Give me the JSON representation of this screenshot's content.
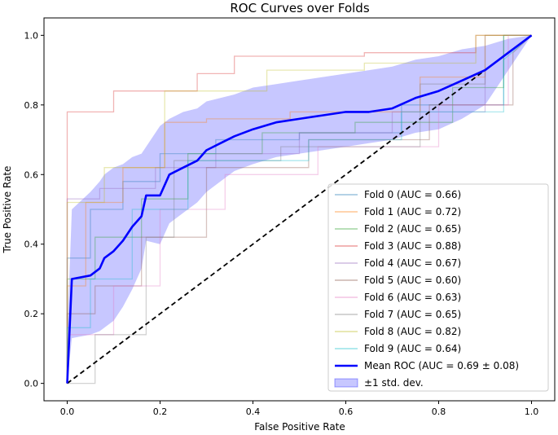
{
  "chart_data": {
    "type": "line",
    "title": "ROC Curves over Folds",
    "xlabel": "False Positive Rate",
    "ylabel": "True Positive Rate",
    "xlim": [
      -0.05,
      1.05
    ],
    "ylim": [
      -0.05,
      1.05
    ],
    "xticks": [
      0.0,
      0.2,
      0.4,
      0.6,
      0.8,
      1.0
    ],
    "yticks": [
      0.0,
      0.2,
      0.4,
      0.6,
      0.8,
      1.0
    ],
    "xtick_labels": [
      "0.0",
      "0.2",
      "0.4",
      "0.6",
      "0.8",
      "1.0"
    ],
    "ytick_labels": [
      "0.0",
      "0.2",
      "0.4",
      "0.6",
      "0.8",
      "1.0"
    ],
    "legend_position": "lower-right",
    "series": [
      {
        "name": "Fold 0 (AUC = 0.66)",
        "color": "#1f77b4",
        "x": [
          0,
          0,
          0.05,
          0.05,
          0.12,
          0.12,
          0.2,
          0.2,
          0.32,
          0.32,
          0.5,
          0.5,
          0.72,
          0.72,
          0.94,
          0.94,
          1.0
        ],
        "y": [
          0,
          0.36,
          0.36,
          0.5,
          0.5,
          0.58,
          0.58,
          0.66,
          0.66,
          0.7,
          0.7,
          0.72,
          0.72,
          0.8,
          0.8,
          1.0,
          1.0
        ]
      },
      {
        "name": "Fold 1 (AUC = 0.72)",
        "color": "#ff7f0e",
        "x": [
          0,
          0,
          0.04,
          0.04,
          0.12,
          0.12,
          0.21,
          0.21,
          0.3,
          0.3,
          0.48,
          0.48,
          0.76,
          0.76,
          0.9,
          0.9,
          1.0
        ],
        "y": [
          0,
          0.28,
          0.28,
          0.52,
          0.52,
          0.62,
          0.62,
          0.75,
          0.75,
          0.76,
          0.76,
          0.78,
          0.78,
          0.88,
          0.88,
          1.0,
          1.0
        ]
      },
      {
        "name": "Fold 2 (AUC = 0.65)",
        "color": "#2ca02c",
        "x": [
          0,
          0,
          0.06,
          0.06,
          0.16,
          0.16,
          0.26,
          0.26,
          0.42,
          0.42,
          0.62,
          0.62,
          0.83,
          0.83,
          0.94,
          0.94,
          1.0
        ],
        "y": [
          0,
          0.3,
          0.3,
          0.42,
          0.42,
          0.53,
          0.53,
          0.66,
          0.66,
          0.72,
          0.72,
          0.75,
          0.75,
          0.85,
          0.85,
          1.0,
          1.0
        ]
      },
      {
        "name": "Fold 3 (AUC = 0.88)",
        "color": "#d62728",
        "x": [
          0,
          0,
          0.1,
          0.1,
          0.28,
          0.28,
          0.36,
          0.36,
          0.64,
          0.64,
          0.88,
          0.88,
          1.0
        ],
        "y": [
          0,
          0.78,
          0.78,
          0.84,
          0.84,
          0.89,
          0.89,
          0.94,
          0.94,
          0.95,
          0.95,
          1.0,
          1.0
        ]
      },
      {
        "name": "Fold 4 (AUC = 0.67)",
        "color": "#9467bd",
        "x": [
          0,
          0,
          0.07,
          0.07,
          0.19,
          0.19,
          0.32,
          0.32,
          0.5,
          0.5,
          0.7,
          0.7,
          0.9,
          0.9,
          1.0
        ],
        "y": [
          0,
          0.53,
          0.53,
          0.56,
          0.56,
          0.62,
          0.62,
          0.66,
          0.66,
          0.72,
          0.72,
          0.78,
          0.78,
          0.9,
          1.0
        ]
      },
      {
        "name": "Fold 5 (AUC = 0.60)",
        "color": "#8c564b",
        "x": [
          0,
          0,
          0.06,
          0.06,
          0.16,
          0.16,
          0.3,
          0.3,
          0.52,
          0.52,
          0.78,
          0.78,
          0.96,
          0.96,
          1.0
        ],
        "y": [
          0,
          0.2,
          0.2,
          0.28,
          0.28,
          0.42,
          0.42,
          0.62,
          0.62,
          0.7,
          0.7,
          0.8,
          0.8,
          0.95,
          1.0
        ]
      },
      {
        "name": "Fold 6 (AUC = 0.63)",
        "color": "#e377c2",
        "x": [
          0,
          0,
          0.1,
          0.1,
          0.2,
          0.2,
          0.34,
          0.34,
          0.54,
          0.54,
          0.8,
          0.8,
          0.95,
          0.95,
          1.0
        ],
        "y": [
          0,
          0.14,
          0.14,
          0.28,
          0.28,
          0.5,
          0.5,
          0.6,
          0.6,
          0.68,
          0.68,
          0.8,
          0.8,
          1.0,
          1.0
        ]
      },
      {
        "name": "Fold 7 (AUC = 0.65)",
        "color": "#7f7f7f",
        "x": [
          0,
          0,
          0.06,
          0.06,
          0.17,
          0.17,
          0.23,
          0.23,
          0.46,
          0.46,
          0.76,
          0.76,
          0.9,
          0.9,
          1.0
        ],
        "y": [
          0,
          0.0,
          0.0,
          0.14,
          0.14,
          0.42,
          0.42,
          0.64,
          0.64,
          0.68,
          0.68,
          0.86,
          0.86,
          1.0,
          1.0
        ]
      },
      {
        "name": "Fold 8 (AUC = 0.82)",
        "color": "#bcbd22",
        "x": [
          0,
          0,
          0.08,
          0.08,
          0.21,
          0.21,
          0.43,
          0.43,
          0.64,
          0.64,
          0.88,
          0.88,
          1.0
        ],
        "y": [
          0,
          0.52,
          0.52,
          0.62,
          0.62,
          0.84,
          0.84,
          0.9,
          0.9,
          0.92,
          0.92,
          1.0,
          1.0
        ]
      },
      {
        "name": "Fold 9 (AUC = 0.64)",
        "color": "#17becf",
        "x": [
          0,
          0,
          0.05,
          0.05,
          0.14,
          0.14,
          0.26,
          0.26,
          0.52,
          0.52,
          0.72,
          0.72,
          0.94,
          0.94,
          1.0
        ],
        "y": [
          0,
          0.16,
          0.16,
          0.3,
          0.3,
          0.5,
          0.5,
          0.64,
          0.64,
          0.7,
          0.7,
          0.78,
          0.78,
          0.93,
          1.0
        ]
      }
    ],
    "mean": {
      "name": "Mean ROC (AUC = 0.69 ± 0.08)",
      "color": "#0000ff",
      "x": [
        0,
        0.01,
        0.05,
        0.07,
        0.08,
        0.1,
        0.12,
        0.14,
        0.16,
        0.17,
        0.2,
        0.22,
        0.25,
        0.28,
        0.3,
        0.33,
        0.36,
        0.4,
        0.45,
        0.5,
        0.55,
        0.6,
        0.65,
        0.7,
        0.75,
        0.8,
        0.85,
        0.9,
        0.95,
        1.0
      ],
      "y": [
        0.0,
        0.3,
        0.31,
        0.33,
        0.36,
        0.38,
        0.41,
        0.45,
        0.48,
        0.54,
        0.54,
        0.6,
        0.62,
        0.64,
        0.67,
        0.69,
        0.71,
        0.73,
        0.75,
        0.76,
        0.77,
        0.78,
        0.78,
        0.79,
        0.82,
        0.84,
        0.87,
        0.9,
        0.95,
        1.0
      ]
    },
    "band": {
      "name": "±1 std. dev.",
      "color": "#0000ff",
      "upper": [
        0.14,
        0.5,
        0.55,
        0.58,
        0.6,
        0.62,
        0.63,
        0.65,
        0.66,
        0.68,
        0.74,
        0.76,
        0.78,
        0.79,
        0.81,
        0.82,
        0.83,
        0.85,
        0.86,
        0.87,
        0.88,
        0.89,
        0.9,
        0.91,
        0.93,
        0.94,
        0.96,
        0.97,
        0.99,
        1.0
      ],
      "lower": [
        0.0,
        0.13,
        0.14,
        0.15,
        0.16,
        0.18,
        0.22,
        0.27,
        0.33,
        0.41,
        0.4,
        0.46,
        0.49,
        0.52,
        0.55,
        0.58,
        0.61,
        0.63,
        0.65,
        0.66,
        0.67,
        0.68,
        0.69,
        0.7,
        0.72,
        0.73,
        0.76,
        0.8,
        0.9,
        1.0
      ]
    },
    "chance_line": {
      "x": [
        0,
        1
      ],
      "y": [
        0,
        1
      ],
      "color": "#000000",
      "style": "dashed"
    }
  }
}
